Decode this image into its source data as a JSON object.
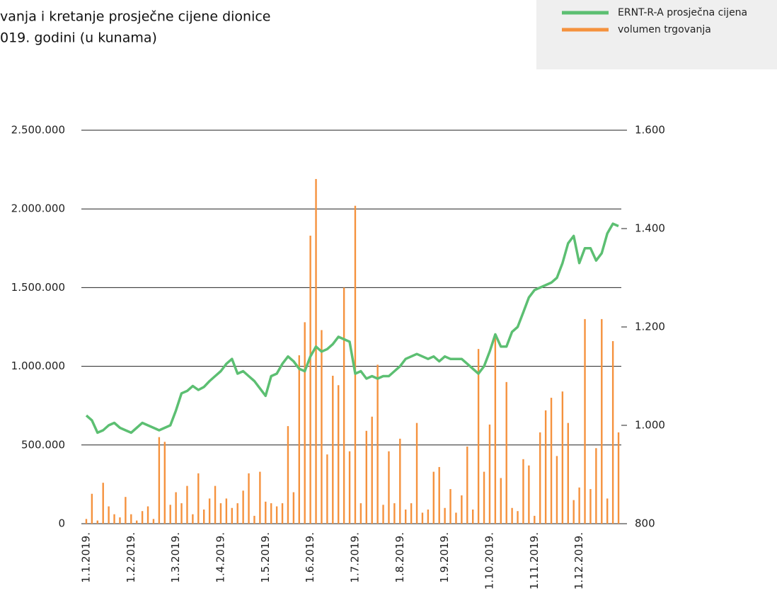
{
  "chart_data": {
    "type": "bar",
    "title": [
      "vanja i kretanje prosječne cijene dionice",
      "019. godini (u kunama)"
    ],
    "categories": [
      "1.1.2019.",
      null,
      null,
      null,
      null,
      null,
      null,
      null,
      "1.2.2019.",
      null,
      null,
      null,
      null,
      null,
      null,
      null,
      "1.3.2019.",
      null,
      null,
      null,
      null,
      null,
      null,
      null,
      "1.4.2019.",
      null,
      null,
      null,
      null,
      null,
      null,
      null,
      "1.5.2019.",
      null,
      null,
      null,
      null,
      null,
      null,
      null,
      "1.6.2019.",
      null,
      null,
      null,
      null,
      null,
      null,
      null,
      "1.7.2019.",
      null,
      null,
      null,
      null,
      null,
      null,
      null,
      "1.8.2019.",
      null,
      null,
      null,
      null,
      null,
      null,
      null,
      "1.9.2019.",
      null,
      null,
      null,
      null,
      null,
      null,
      null,
      "1.10.2019.",
      null,
      null,
      null,
      null,
      null,
      null,
      null,
      "1.11.2019.",
      null,
      null,
      null,
      null,
      null,
      null,
      null,
      "1.12.2019.",
      null,
      null,
      null,
      null,
      null,
      null,
      null
    ],
    "series": [
      {
        "name": "volumen trgovanja",
        "type": "bar",
        "color": "#f5923e",
        "values": [
          30000,
          190000,
          20000,
          260000,
          110000,
          60000,
          40000,
          170000,
          60000,
          20000,
          80000,
          110000,
          30000,
          550000,
          520000,
          120000,
          200000,
          130000,
          240000,
          60000,
          320000,
          90000,
          160000,
          240000,
          130000,
          160000,
          100000,
          130000,
          210000,
          320000,
          50000,
          330000,
          140000,
          130000,
          110000,
          130000,
          620000,
          200000,
          1070000,
          1280000,
          1830000,
          2190000,
          1230000,
          440000,
          940000,
          880000,
          1500000,
          460000,
          2020000,
          130000,
          590000,
          680000,
          1010000,
          120000,
          460000,
          130000,
          540000,
          90000,
          130000,
          640000,
          70000,
          90000,
          330000,
          360000,
          100000,
          220000,
          70000,
          180000,
          490000,
          90000,
          1110000,
          330000,
          630000,
          1180000,
          290000,
          900000,
          100000,
          80000,
          410000,
          370000,
          50000,
          580000,
          720000,
          800000,
          430000,
          840000,
          640000,
          150000,
          230000,
          1300000,
          220000,
          480000,
          1300000,
          160000,
          1160000,
          580000
        ]
      },
      {
        "name": "ERNT-R-A prosječna cijena",
        "type": "line",
        "axis": "y2",
        "color": "#5cbf72",
        "values": [
          1020,
          1010,
          985,
          990,
          1000,
          1005,
          995,
          990,
          985,
          995,
          1005,
          1000,
          995,
          990,
          995,
          1000,
          1030,
          1065,
          1070,
          1080,
          1072,
          1078,
          1090,
          1100,
          1110,
          1125,
          1135,
          1105,
          1110,
          1100,
          1090,
          1075,
          1060,
          1100,
          1105,
          1125,
          1140,
          1130,
          1115,
          1110,
          1140,
          1160,
          1150,
          1155,
          1165,
          1180,
          1175,
          1170,
          1105,
          1110,
          1095,
          1100,
          1095,
          1100,
          1100,
          1110,
          1120,
          1135,
          1140,
          1145,
          1140,
          1135,
          1140,
          1130,
          1140,
          1135,
          1135,
          1135,
          1125,
          1115,
          1105,
          1120,
          1150,
          1185,
          1160,
          1160,
          1190,
          1200,
          1230,
          1260,
          1275,
          1280,
          1285,
          1290,
          1300,
          1330,
          1370,
          1385,
          1330,
          1360,
          1360,
          1335,
          1350,
          1390,
          1410,
          1405
        ]
      }
    ],
    "ylim": [
      0,
      2500000
    ],
    "yticks": [
      0,
      {
        "value": 500000,
        "label": "500.000"
      },
      {
        "value": 1000000,
        "label": "1.000.000"
      },
      {
        "value": 1500000,
        "label": "1.500.000"
      },
      {
        "value": 2000000,
        "label": "2.000.000"
      },
      {
        "value": 2500000,
        "label": "2.500.000"
      }
    ],
    "y2lim": [
      800,
      1600
    ],
    "y2ticks": [
      800,
      {
        "value": 1000,
        "label": "1.000"
      },
      {
        "value": 1200,
        "label": "1.200"
      },
      {
        "value": 1400,
        "label": "1.400"
      },
      {
        "value": 1600,
        "label": "1.600"
      }
    ],
    "grid": true,
    "legend": "top-right"
  }
}
